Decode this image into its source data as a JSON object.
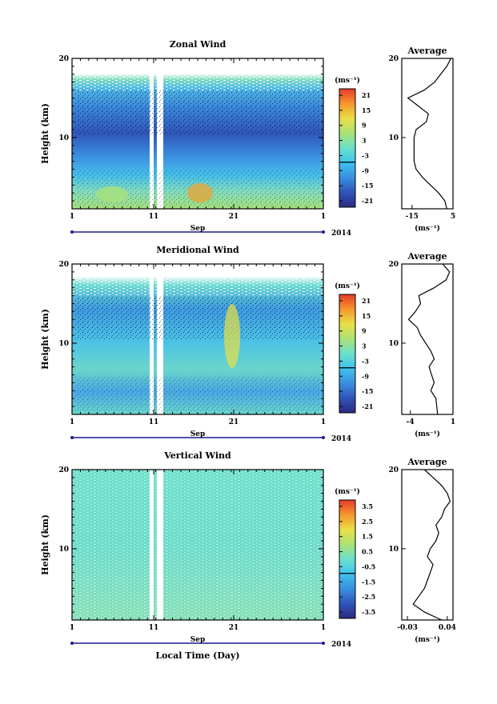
{
  "page": {
    "x_label": "Local Time (Day)",
    "month_label": "Sep",
    "year_label": "2014",
    "average_title": "Average",
    "units": "(ms⁻¹)"
  },
  "chart_data": [
    {
      "type": "heatmap",
      "title": "Zonal Wind",
      "ylabel": "Height (km)",
      "x_ticks": [
        "1",
        "11",
        "21",
        "1"
      ],
      "y_ticks": [
        "10",
        "20"
      ],
      "ylim": [
        1,
        20
      ],
      "colorbar_label": "(ms⁻¹)",
      "colorbar_ticks": [
        "21",
        "15",
        "9",
        "3",
        "-3",
        "-9",
        "-15",
        "-21"
      ],
      "colorbar_range": [
        -24,
        24
      ],
      "profile": {
        "title": "Average",
        "x_ticks": [
          "-15",
          "5"
        ],
        "xlim": [
          -20,
          5
        ],
        "xlabel": "(ms⁻¹)",
        "heights": [
          1,
          2,
          3,
          4,
          5,
          6,
          7,
          8,
          9,
          10,
          11,
          12,
          13,
          14,
          15,
          16,
          17,
          18,
          19,
          20
        ],
        "values": [
          2,
          1,
          -2,
          -6,
          -10,
          -13,
          -14,
          -14,
          -14,
          -14,
          -13,
          -8,
          -7,
          -12,
          -17,
          -9,
          -4,
          -1,
          2,
          4
        ]
      }
    },
    {
      "type": "heatmap",
      "title": "Meridional Wind",
      "ylabel": "Height (km)",
      "x_ticks": [
        "1",
        "11",
        "21",
        "1"
      ],
      "y_ticks": [
        "10",
        "20"
      ],
      "ylim": [
        1,
        20
      ],
      "colorbar_label": "(ms⁻¹)",
      "colorbar_ticks": [
        "21",
        "15",
        "9",
        "3",
        "-3",
        "-9",
        "-15",
        "-21"
      ],
      "colorbar_range": [
        -24,
        24
      ],
      "profile": {
        "title": "Average",
        "x_ticks": [
          "-4",
          "1"
        ],
        "xlim": [
          -5,
          1
        ],
        "xlabel": "(ms⁻¹)",
        "heights": [
          1,
          2,
          3,
          4,
          5,
          6,
          7,
          8,
          9,
          10,
          11,
          12,
          13,
          14,
          15,
          16,
          17,
          18,
          19,
          20
        ],
        "values": [
          -0.8,
          -0.9,
          -1.0,
          -1.6,
          -1.2,
          -1.5,
          -1.8,
          -1.2,
          -1.6,
          -2.2,
          -2.8,
          -3.2,
          -4.2,
          -3.4,
          -2.8,
          -3.0,
          -1.2,
          0.2,
          0.6,
          -0.2
        ]
      }
    },
    {
      "type": "heatmap",
      "title": "Vertical Wind",
      "ylabel": "Height (km)",
      "x_ticks": [
        "1",
        "11",
        "21",
        "1"
      ],
      "y_ticks": [
        "10",
        "20"
      ],
      "ylim": [
        1,
        20
      ],
      "colorbar_label": "(ms⁻¹)",
      "colorbar_ticks": [
        "3.5",
        "2.5",
        "1.5",
        "0.5",
        "-0.5",
        "-1.5",
        "-2.5",
        "-3.5"
      ],
      "colorbar_range": [
        -4,
        4
      ],
      "profile": {
        "title": "Average",
        "x_ticks": [
          "-0.03",
          "0.04"
        ],
        "xlim": [
          -0.04,
          0.05
        ],
        "xlabel": "(ms⁻¹)",
        "heights": [
          1,
          2,
          3,
          4,
          5,
          6,
          7,
          8,
          9,
          10,
          11,
          12,
          13,
          14,
          15,
          16,
          17,
          18,
          19,
          20
        ],
        "values": [
          0.03,
          0.0,
          -0.02,
          -0.01,
          0.0,
          0.005,
          0.01,
          0.015,
          0.005,
          0.01,
          0.02,
          0.025,
          0.02,
          0.03,
          0.035,
          0.045,
          0.04,
          0.03,
          0.015,
          0.0
        ]
      }
    }
  ]
}
